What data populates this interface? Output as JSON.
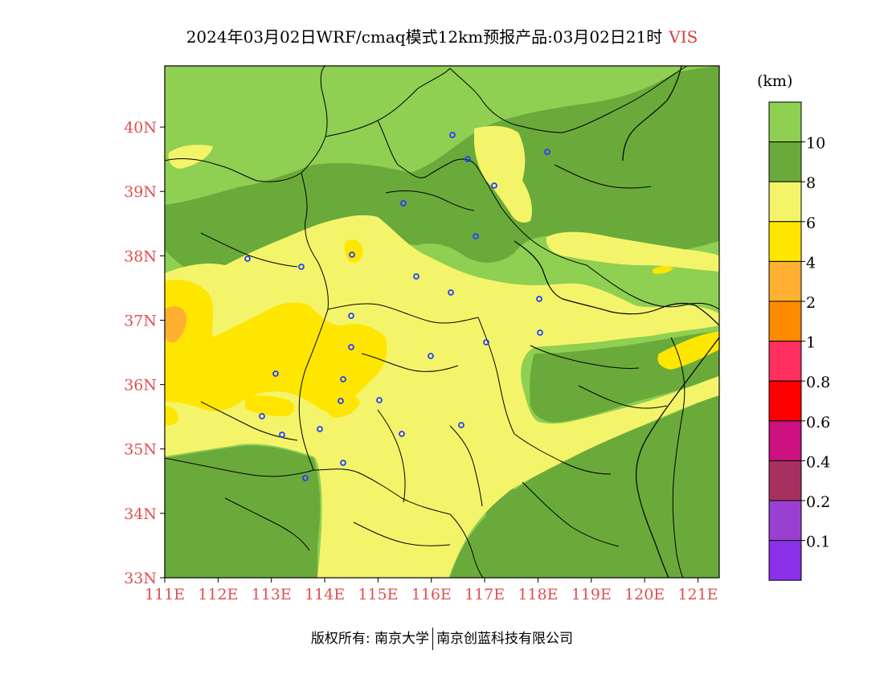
{
  "title": "2024年03月02日WRF/cmaq模式12km预报产品:03月02日21时",
  "variable": "VIS",
  "unit": "(km)",
  "lat_labels": [
    "33N",
    "34N",
    "35N",
    "36N",
    "37N",
    "38N",
    "39N",
    "40N"
  ],
  "lon_labels": [
    "111E",
    "112E",
    "113E",
    "114E",
    "115E",
    "116E",
    "117E",
    "118E",
    "119E",
    "120E",
    "121E"
  ],
  "legend": [
    {
      "label": "10",
      "color": "#8fcf52"
    },
    {
      "label": "8",
      "color": "#6aaa3a"
    },
    {
      "label": "6",
      "color": "#f4f46a"
    },
    {
      "label": "4",
      "color": "#ffe600"
    },
    {
      "label": "2",
      "color": "#ffb030"
    },
    {
      "label": "1",
      "color": "#ff8c00"
    },
    {
      "label": "0.8",
      "color": "#ff3060"
    },
    {
      "label": "0.6",
      "color": "#ff0000"
    },
    {
      "label": "0.4",
      "color": "#cc1080"
    },
    {
      "label": "0.2",
      "color": "#a83060"
    },
    {
      "label": "0.1",
      "color": "#9a40d0"
    },
    {
      "label": "",
      "color": "#8a30e8"
    }
  ],
  "footer": {
    "left": "版权所有: 南京大学",
    "right": "南京创蓝科技有限公司"
  }
}
